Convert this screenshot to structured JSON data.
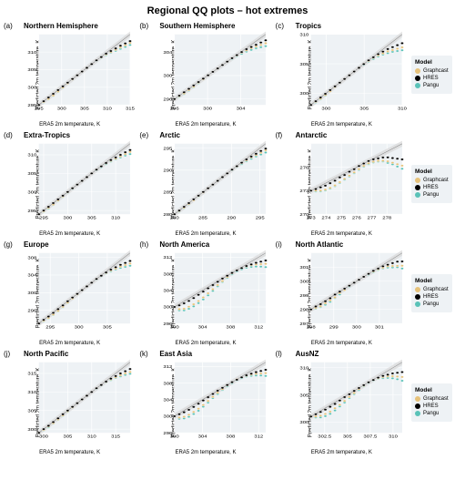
{
  "title": "Regional QQ plots – hot extremes",
  "axis": {
    "x": "ERA5 2m temperature, K",
    "y": "Predicted 2m temperature, K"
  },
  "colors": {
    "bg": "#ffffff",
    "panel_bg": "#eef2f5",
    "grid": "#ffffff",
    "ref_line": "#7f7f7f",
    "ref_band": "#d9d9d9",
    "graphcast": "#e6c27a",
    "hres": "#000000",
    "pangu": "#5ac2b8"
  },
  "legend": {
    "title": "Model",
    "items": [
      {
        "label": "Graphcast",
        "color_key": "graphcast"
      },
      {
        "label": "HRES",
        "color_key": "hres"
      },
      {
        "label": "Pangu",
        "color_key": "pangu"
      }
    ]
  },
  "marker": {
    "size": 1.3,
    "stroke": 0.3
  },
  "panels": [
    {
      "letter": "(a)",
      "title": "Northern Hemisphere",
      "xlim": [
        295,
        315
      ],
      "ylim": [
        295,
        315
      ],
      "xticks": [
        295,
        300,
        305,
        310,
        315
      ],
      "yticks": [
        295,
        300,
        305,
        310
      ],
      "curves": {
        "graphcast": [
          0,
          -0.2,
          -0.4,
          -0.5,
          -0.4,
          -0.3,
          -0.2,
          -0.1,
          0,
          0,
          0,
          0,
          0,
          -0.2,
          -0.4,
          -0.8,
          -1.2,
          -1.6,
          -2.0,
          -2.4
        ],
        "hres": [
          0,
          0,
          0,
          0,
          0,
          0,
          0,
          0,
          0,
          0,
          0,
          0,
          0,
          -0.1,
          -0.2,
          -0.5,
          -0.8,
          -1.1,
          -1.5,
          -1.9
        ],
        "pangu": [
          0,
          -0.3,
          -0.5,
          -0.6,
          -0.5,
          -0.4,
          -0.2,
          -0.1,
          0,
          0,
          0,
          0,
          -0.1,
          -0.3,
          -0.6,
          -1.0,
          -1.5,
          -2.0,
          -2.5,
          -3.0
        ]
      }
    },
    {
      "letter": "(b)",
      "title": "Southern Hemisphere",
      "xlim": [
        296,
        307
      ],
      "ylim": [
        295,
        307
      ],
      "xticks": [
        296,
        300,
        304
      ],
      "yticks": [
        296,
        300,
        304
      ],
      "curves": {
        "graphcast": [
          0,
          -0.1,
          -0.2,
          -0.2,
          -0.2,
          -0.1,
          -0.1,
          0,
          0,
          0,
          0,
          0,
          0,
          -0.1,
          -0.2,
          -0.4,
          -0.6,
          -0.9,
          -1.2,
          -1.5
        ],
        "hres": [
          0,
          0,
          0,
          0,
          0,
          0,
          0,
          0,
          0,
          0,
          0,
          0,
          0,
          -0.05,
          -0.1,
          -0.2,
          -0.4,
          -0.6,
          -0.8,
          -1.0
        ],
        "pangu": [
          0,
          -0.2,
          -0.3,
          -0.3,
          -0.3,
          -0.2,
          -0.1,
          0,
          0,
          0,
          0,
          0,
          -0.1,
          -0.2,
          -0.4,
          -0.6,
          -0.9,
          -1.2,
          -1.6,
          -2.0
        ]
      }
    },
    {
      "letter": "(c)",
      "title": "Tropics",
      "xlim": [
        298,
        310
      ],
      "ylim": [
        298,
        310
      ],
      "xticks": [
        300,
        305,
        310
      ],
      "yticks": [
        300,
        305,
        310
      ],
      "curves": {
        "graphcast": [
          0,
          -0.1,
          -0.2,
          -0.2,
          -0.2,
          -0.1,
          0,
          0,
          0,
          0,
          0,
          0,
          -0.1,
          -0.2,
          -0.4,
          -0.7,
          -1.0,
          -1.4,
          -1.8,
          -2.2
        ],
        "hres": [
          0,
          0,
          0,
          0,
          0,
          0,
          0,
          0,
          0,
          0,
          0,
          0,
          0,
          -0.1,
          -0.2,
          -0.4,
          -0.6,
          -0.9,
          -1.2,
          -1.5
        ],
        "pangu": [
          0,
          -0.2,
          -0.3,
          -0.3,
          -0.2,
          -0.1,
          0,
          0,
          0,
          0,
          0,
          -0.1,
          -0.2,
          -0.4,
          -0.6,
          -0.9,
          -1.3,
          -1.7,
          -2.2,
          -2.7
        ]
      }
    },
    {
      "letter": "(d)",
      "title": "Extra-Tropics",
      "xlim": [
        294,
        313
      ],
      "ylim": [
        294,
        313
      ],
      "xticks": [
        295,
        300,
        305,
        310
      ],
      "yticks": [
        295,
        300,
        305,
        310
      ],
      "curves": {
        "graphcast": [
          0,
          -0.2,
          -0.3,
          -0.4,
          -0.3,
          -0.2,
          -0.1,
          0,
          0,
          0,
          0,
          0,
          0,
          -0.1,
          -0.3,
          -0.6,
          -1.0,
          -1.4,
          -1.8,
          -2.2
        ],
        "hres": [
          0,
          0,
          0,
          0,
          0,
          0,
          0,
          0,
          0,
          0,
          0,
          0,
          0,
          -0.1,
          -0.2,
          -0.4,
          -0.7,
          -1.0,
          -1.3,
          -1.7
        ],
        "pangu": [
          0,
          -0.3,
          -0.5,
          -0.5,
          -0.4,
          -0.3,
          -0.2,
          -0.1,
          0,
          0,
          0,
          0,
          -0.1,
          -0.3,
          -0.5,
          -0.8,
          -1.2,
          -1.7,
          -2.2,
          -2.8
        ]
      }
    },
    {
      "letter": "(e)",
      "title": "Arctic",
      "xlim": [
        280,
        296
      ],
      "ylim": [
        280,
        296
      ],
      "xticks": [
        280,
        285,
        290,
        295
      ],
      "yticks": [
        280,
        285,
        290,
        295
      ],
      "curves": {
        "graphcast": [
          0,
          -0.1,
          -0.2,
          -0.2,
          -0.2,
          -0.1,
          -0.1,
          0,
          0,
          0,
          0,
          0,
          0,
          -0.1,
          -0.2,
          -0.4,
          -0.6,
          -0.9,
          -1.2,
          -1.5
        ],
        "hres": [
          0,
          0,
          0,
          0,
          0,
          0,
          0,
          0,
          0,
          0,
          0,
          0,
          0,
          -0.05,
          -0.1,
          -0.2,
          -0.4,
          -0.6,
          -0.8,
          -1.1
        ],
        "pangu": [
          0,
          -0.2,
          -0.3,
          -0.3,
          -0.2,
          -0.2,
          -0.1,
          0,
          0,
          0,
          0,
          0,
          -0.1,
          -0.2,
          -0.4,
          -0.6,
          -0.9,
          -1.2,
          -1.6,
          -2.0
        ]
      }
    },
    {
      "letter": "(f)",
      "title": "Antarctic",
      "xlim": [
        273,
        279
      ],
      "ylim": [
        270,
        279
      ],
      "xticks": [
        273,
        274,
        275,
        276,
        277,
        278
      ],
      "yticks": [
        270,
        273,
        276
      ],
      "curves": {
        "graphcast": [
          0,
          -0.3,
          -0.6,
          -0.8,
          -0.9,
          -0.9,
          -0.8,
          -0.7,
          -0.6,
          -0.5,
          -0.4,
          -0.3,
          -0.3,
          -0.4,
          -0.6,
          -0.9,
          -1.3,
          -1.8,
          -2.3,
          -2.8
        ],
        "hres": [
          0,
          -0.1,
          -0.2,
          -0.3,
          -0.3,
          -0.3,
          -0.2,
          -0.2,
          -0.1,
          -0.1,
          0,
          0,
          0,
          -0.1,
          -0.3,
          -0.5,
          -0.8,
          -1.2,
          -1.6,
          -2.0
        ],
        "pangu": [
          0,
          -0.4,
          -0.7,
          -0.9,
          -1.0,
          -1.0,
          -0.9,
          -0.8,
          -0.7,
          -0.6,
          -0.5,
          -0.4,
          -0.4,
          -0.5,
          -0.7,
          -1.0,
          -1.5,
          -2.0,
          -2.6,
          -3.2
        ]
      }
    },
    {
      "letter": "(g)",
      "title": "Europe",
      "xlim": [
        293,
        309
      ],
      "ylim": [
        293,
        309
      ],
      "xticks": [
        295,
        300,
        305
      ],
      "yticks": [
        296,
        300,
        304,
        308
      ],
      "curves": {
        "graphcast": [
          0,
          -0.2,
          -0.4,
          -0.5,
          -0.5,
          -0.4,
          -0.3,
          -0.2,
          -0.1,
          0,
          0,
          0,
          0,
          -0.1,
          -0.3,
          -0.6,
          -1.0,
          -1.4,
          -1.9,
          -2.4
        ],
        "hres": [
          0,
          0,
          -0.1,
          -0.1,
          -0.1,
          -0.1,
          0,
          0,
          0,
          0,
          0,
          0,
          0,
          -0.1,
          -0.2,
          -0.4,
          -0.7,
          -1.0,
          -1.4,
          -1.8
        ],
        "pangu": [
          0,
          -0.3,
          -0.5,
          -0.6,
          -0.6,
          -0.5,
          -0.4,
          -0.2,
          -0.1,
          0,
          0,
          0,
          -0.1,
          -0.2,
          -0.4,
          -0.8,
          -1.2,
          -1.7,
          -2.3,
          -2.9
        ]
      }
    },
    {
      "letter": "(h)",
      "title": "North America",
      "xlim": [
        300,
        313
      ],
      "ylim": [
        296,
        313
      ],
      "xticks": [
        300,
        304,
        308,
        312
      ],
      "yticks": [
        296,
        300,
        304,
        308,
        312
      ],
      "curves": {
        "graphcast": [
          0,
          -1.2,
          -1.8,
          -2.0,
          -2.1,
          -2.0,
          -1.8,
          -1.5,
          -1.2,
          -0.9,
          -0.6,
          -0.3,
          -0.1,
          -0.1,
          -0.2,
          -0.5,
          -0.9,
          -1.4,
          -2.0,
          -2.6
        ],
        "hres": [
          0,
          -0.3,
          -0.5,
          -0.6,
          -0.6,
          -0.5,
          -0.4,
          -0.3,
          -0.2,
          -0.1,
          0,
          0,
          0,
          -0.1,
          -0.2,
          -0.4,
          -0.7,
          -1.0,
          -1.4,
          -1.8
        ],
        "pangu": [
          0,
          -1.5,
          -2.2,
          -2.5,
          -2.6,
          -2.5,
          -2.3,
          -2.0,
          -1.6,
          -1.2,
          -0.8,
          -0.5,
          -0.3,
          -0.3,
          -0.5,
          -0.8,
          -1.3,
          -1.9,
          -2.6,
          -3.4
        ]
      }
    },
    {
      "letter": "(i)",
      "title": "North Atlantic",
      "xlim": [
        298,
        302
      ],
      "ylim": [
        297,
        302
      ],
      "xticks": [
        298,
        299,
        300,
        301
      ],
      "yticks": [
        297,
        298,
        299,
        300,
        301
      ],
      "curves": {
        "graphcast": [
          0,
          -0.1,
          -0.2,
          -0.2,
          -0.2,
          -0.2,
          -0.1,
          -0.1,
          0,
          0,
          0,
          0,
          0,
          -0.05,
          -0.1,
          -0.2,
          -0.3,
          -0.5,
          -0.7,
          -0.9
        ],
        "hres": [
          0,
          0,
          -0.05,
          -0.05,
          -0.05,
          0,
          0,
          0,
          0,
          0,
          0,
          0,
          0,
          0,
          -0.05,
          -0.1,
          -0.2,
          -0.3,
          -0.4,
          -0.6
        ],
        "pangu": [
          0,
          -0.15,
          -0.25,
          -0.3,
          -0.3,
          -0.25,
          -0.2,
          -0.1,
          -0.05,
          0,
          0,
          0,
          -0.05,
          -0.1,
          -0.15,
          -0.25,
          -0.4,
          -0.6,
          -0.8,
          -1.1
        ]
      }
    },
    {
      "letter": "(j)",
      "title": "North Pacific",
      "xlim": [
        299,
        318
      ],
      "ylim": [
        299,
        318
      ],
      "xticks": [
        300,
        305,
        310,
        315
      ],
      "yticks": [
        300,
        305,
        310,
        315
      ],
      "curves": {
        "graphcast": [
          0,
          -0.2,
          -0.3,
          -0.4,
          -0.4,
          -0.3,
          -0.2,
          -0.1,
          0,
          0,
          0,
          0,
          0,
          -0.1,
          -0.3,
          -0.6,
          -1.0,
          -1.5,
          -2.0,
          -2.6
        ],
        "hres": [
          0,
          0,
          -0.1,
          -0.1,
          -0.1,
          0,
          0,
          0,
          0,
          0,
          0,
          0,
          0,
          -0.1,
          -0.2,
          -0.4,
          -0.7,
          -1.0,
          -1.4,
          -1.8
        ],
        "pangu": [
          0,
          -0.3,
          -0.5,
          -0.5,
          -0.5,
          -0.4,
          -0.3,
          -0.1,
          0,
          0,
          0,
          0,
          -0.1,
          -0.2,
          -0.4,
          -0.8,
          -1.2,
          -1.8,
          -2.4,
          -3.1
        ]
      }
    },
    {
      "letter": "(k)",
      "title": "East Asia",
      "xlim": [
        300,
        313
      ],
      "ylim": [
        296,
        313
      ],
      "xticks": [
        300,
        304,
        308,
        312
      ],
      "yticks": [
        296,
        300,
        304,
        308,
        312
      ],
      "curves": {
        "graphcast": [
          0,
          -1.0,
          -1.5,
          -1.7,
          -1.7,
          -1.6,
          -1.4,
          -1.1,
          -0.8,
          -0.5,
          -0.3,
          -0.1,
          0,
          0,
          -0.2,
          -0.5,
          -0.9,
          -1.4,
          -2.0,
          -2.6
        ],
        "hres": [
          0,
          -0.2,
          -0.4,
          -0.5,
          -0.5,
          -0.4,
          -0.3,
          -0.2,
          -0.1,
          0,
          0,
          0,
          0,
          -0.1,
          -0.2,
          -0.4,
          -0.7,
          -1.0,
          -1.4,
          -1.8
        ],
        "pangu": [
          0,
          -1.3,
          -1.9,
          -2.2,
          -2.2,
          -2.1,
          -1.8,
          -1.5,
          -1.1,
          -0.8,
          -0.5,
          -0.3,
          -0.2,
          -0.2,
          -0.4,
          -0.7,
          -1.2,
          -1.8,
          -2.5,
          -3.3
        ]
      }
    },
    {
      "letter": "(l)",
      "title": "AusNZ",
      "xlim": [
        301,
        311
      ],
      "ylim": [
        298,
        311
      ],
      "xticks": [
        302.5,
        305,
        307.5,
        310
      ],
      "yticks": [
        300,
        305,
        310
      ],
      "curves": {
        "graphcast": [
          0,
          -0.5,
          -0.9,
          -1.1,
          -1.2,
          -1.1,
          -1.0,
          -0.8,
          -0.6,
          -0.4,
          -0.2,
          -0.1,
          0,
          -0.1,
          -0.3,
          -0.6,
          -1.0,
          -1.5,
          -2.1,
          -2.7
        ],
        "hres": [
          0,
          -0.1,
          -0.2,
          -0.3,
          -0.3,
          -0.3,
          -0.2,
          -0.1,
          -0.1,
          0,
          0,
          0,
          0,
          -0.1,
          -0.2,
          -0.4,
          -0.7,
          -1.0,
          -1.4,
          -1.8
        ],
        "pangu": [
          0,
          -0.7,
          -1.2,
          -1.5,
          -1.6,
          -1.5,
          -1.3,
          -1.1,
          -0.8,
          -0.6,
          -0.4,
          -0.2,
          -0.1,
          -0.2,
          -0.4,
          -0.8,
          -1.3,
          -1.9,
          -2.6,
          -3.4
        ]
      }
    }
  ]
}
